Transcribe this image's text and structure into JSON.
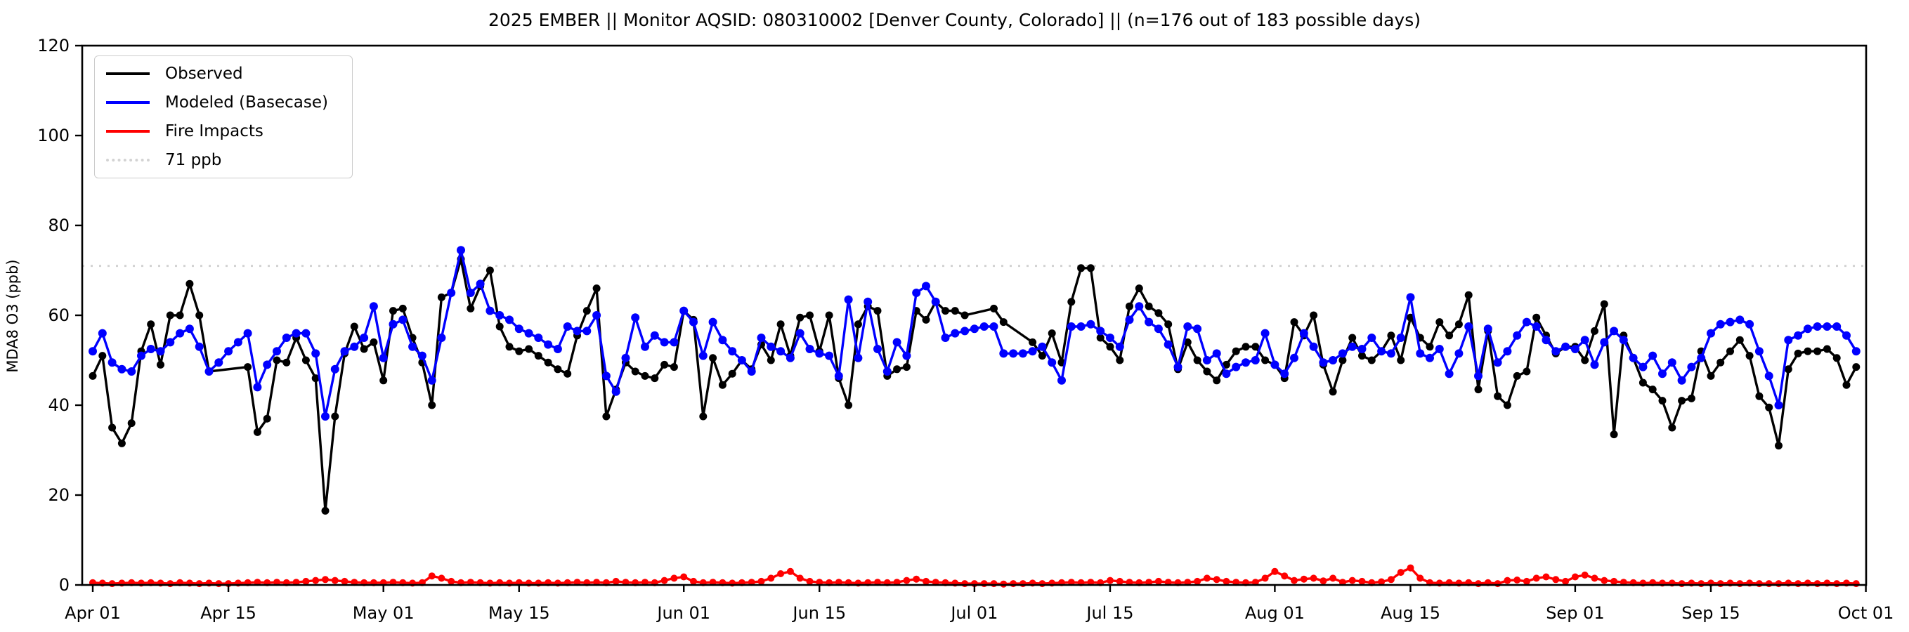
{
  "title": "2025 EMBER || Monitor AQSID: 080310002 [Denver County, Colorado] || (n=176 out of 183 possible days)",
  "chart_data": {
    "type": "line",
    "title": "2025 EMBER || Monitor AQSID: 080310002 [Denver County, Colorado] || (n=176 out of 183 possible days)",
    "xlabel": "",
    "ylabel": "MDA8 O3 (ppb)",
    "ylim": [
      0,
      120
    ],
    "yticks": [
      0,
      20,
      40,
      60,
      80,
      100,
      120
    ],
    "x_start_date": "Apr 01",
    "x_end_date": "Oct 01",
    "n_days": 183,
    "xtick_labels": [
      "Apr 01",
      "Apr 15",
      "May 01",
      "May 15",
      "Jun 01",
      "Jun 15",
      "Jul 01",
      "Jul 15",
      "Aug 01",
      "Aug 15",
      "Sep 01",
      "Sep 15",
      "Oct 01"
    ],
    "xtick_days": [
      0,
      14,
      30,
      44,
      61,
      75,
      91,
      105,
      122,
      136,
      153,
      167,
      183
    ],
    "grid": false,
    "legend_position": "upper left",
    "reference_line": {
      "value": 71,
      "label": "71 ppb",
      "color": "#d3d3d3",
      "style": "dotted"
    },
    "series": [
      {
        "name": "Observed",
        "color": "#000000",
        "values": [
          46.5,
          51,
          35,
          31.5,
          36,
          52,
          58,
          49,
          60,
          60,
          67,
          60,
          47.5,
          null,
          null,
          null,
          48.5,
          34,
          37,
          50,
          49.5,
          55,
          50,
          46,
          16.5,
          37.5,
          51.5,
          57.5,
          52.5,
          54,
          45.5,
          61,
          61.5,
          55,
          49.5,
          40,
          64,
          65,
          72.5,
          61.5,
          66.5,
          70,
          57.5,
          53,
          52,
          52.5,
          51,
          49.5,
          48,
          47,
          55.5,
          61,
          66,
          37.5,
          43.5,
          49.5,
          47.5,
          46.5,
          46,
          49,
          48.5,
          61,
          59,
          37.5,
          50.5,
          44.5,
          47,
          50,
          48,
          53.5,
          50,
          58,
          51,
          59.5,
          60,
          52,
          60,
          46,
          40,
          58,
          62,
          61,
          46.5,
          48,
          48.5,
          61,
          59,
          63,
          61,
          61,
          60,
          null,
          null,
          61.5,
          58.5,
          null,
          null,
          54,
          51,
          56,
          49.5,
          63,
          70.5,
          70.5,
          55,
          53,
          50,
          62,
          66,
          62,
          60.5,
          58,
          48,
          54,
          50,
          47.5,
          45.5,
          49,
          52,
          53,
          53,
          50,
          49,
          46,
          58.5,
          55.5,
          60,
          49,
          43,
          50,
          55,
          51,
          50,
          52,
          55.5,
          50,
          59.5,
          55,
          53,
          58.5,
          55.5,
          58,
          64.5,
          43.5,
          56.5,
          42,
          40,
          46.5,
          47.5,
          59.5,
          55.5,
          51.5,
          53,
          53,
          50,
          56.5,
          62.5,
          33.5,
          55.5,
          50.5,
          45,
          43.5,
          41,
          35,
          41,
          41.5,
          52,
          46.5,
          49.5,
          52,
          54.5,
          51,
          42,
          39.5,
          31,
          48,
          51.5,
          52,
          52,
          52.5,
          50.5,
          44.5,
          48.5
        ]
      },
      {
        "name": "Modeled (Basecase)",
        "color": "#0000ff",
        "values": [
          52,
          56,
          49.5,
          48,
          47.5,
          51,
          52.5,
          52,
          54,
          56,
          57,
          53,
          47.5,
          49.5,
          52,
          54,
          56,
          44,
          49,
          52,
          55,
          56,
          56,
          51.5,
          37.5,
          48,
          52,
          53,
          55,
          62,
          50.5,
          58,
          59,
          53,
          51,
          45.5,
          55,
          65,
          74.5,
          65,
          67,
          61,
          60,
          59,
          57,
          56,
          55,
          53.5,
          52.5,
          57.5,
          56.5,
          56.5,
          60,
          46.5,
          43,
          50.5,
          59.5,
          53,
          55.5,
          54,
          54,
          61,
          58.5,
          51,
          58.5,
          54.5,
          52,
          50,
          47.5,
          55,
          53,
          52,
          50.5,
          56,
          52.5,
          51.5,
          51,
          46.5,
          63.5,
          50.5,
          63,
          52.5,
          47.5,
          54,
          51,
          65,
          66.5,
          63,
          55,
          56,
          56.5,
          57,
          57.5,
          57.5,
          51.5,
          51.5,
          51.5,
          52,
          53,
          49.5,
          45.5,
          57.5,
          57.5,
          58,
          56.5,
          55,
          53,
          59,
          62,
          58.5,
          57,
          53.5,
          48.5,
          57.5,
          57,
          50,
          51.5,
          47,
          48.5,
          49.5,
          50,
          56,
          49,
          47,
          50.5,
          56,
          53,
          49.5,
          50,
          51.5,
          53,
          52.5,
          55,
          52,
          51.5,
          55,
          64,
          51.5,
          50.5,
          52.5,
          47,
          51.5,
          57.5,
          46.5,
          57,
          49.5,
          52,
          55.5,
          58.5,
          57.5,
          54.5,
          52,
          53,
          52.5,
          54.5,
          49,
          54,
          56.5,
          54.5,
          50.5,
          48.5,
          51,
          47,
          49.5,
          45.5,
          48.5,
          50.5,
          56,
          58,
          58.5,
          59,
          58,
          52,
          46.5,
          40,
          54.5,
          55.5,
          57,
          57.5,
          57.5,
          57.5,
          55.5,
          52
        ]
      },
      {
        "name": "Fire Impacts",
        "color": "#ff0000",
        "values": [
          0.5,
          0.4,
          0.3,
          0.4,
          0.5,
          0.4,
          0.5,
          0.4,
          0.3,
          0.5,
          0.4,
          0.3,
          0.4,
          0.3,
          0.3,
          0.4,
          0.5,
          0.6,
          0.5,
          0.6,
          0.5,
          0.6,
          0.8,
          1.0,
          1.2,
          1.0,
          0.8,
          0.6,
          0.5,
          0.5,
          0.5,
          0.6,
          0.5,
          0.4,
          0.5,
          2.0,
          1.5,
          0.8,
          0.5,
          0.6,
          0.5,
          0.4,
          0.5,
          0.4,
          0.5,
          0.4,
          0.4,
          0.5,
          0.4,
          0.5,
          0.6,
          0.5,
          0.6,
          0.5,
          0.8,
          0.6,
          0.5,
          0.6,
          0.5,
          1.0,
          1.5,
          1.8,
          0.8,
          0.5,
          0.6,
          0.5,
          0.4,
          0.5,
          0.6,
          0.8,
          1.5,
          2.5,
          3.0,
          1.5,
          0.8,
          0.6,
          0.5,
          0.6,
          0.5,
          0.4,
          0.5,
          0.6,
          0.5,
          0.6,
          1.0,
          1.3,
          0.8,
          0.6,
          0.5,
          0.4,
          0.3,
          0.3,
          0.3,
          0.3,
          0.2,
          0.3,
          0.3,
          0.4,
          0.3,
          0.4,
          0.5,
          0.6,
          0.5,
          0.6,
          0.5,
          1.0,
          0.8,
          0.6,
          0.5,
          0.6,
          0.8,
          0.6,
          0.5,
          0.6,
          0.8,
          1.5,
          1.2,
          0.8,
          0.6,
          0.5,
          0.6,
          1.5,
          3.0,
          2.0,
          1.0,
          1.3,
          1.5,
          0.9,
          1.5,
          0.6,
          1.0,
          0.8,
          0.5,
          0.7,
          1.2,
          2.8,
          3.8,
          1.5,
          0.5,
          0.4,
          0.5,
          0.4,
          0.5,
          0.3,
          0.5,
          0.3,
          1.0,
          1.1,
          0.8,
          1.5,
          1.8,
          1.2,
          0.8,
          1.8,
          2.2,
          1.5,
          1.0,
          0.8,
          0.6,
          0.5,
          0.4,
          0.5,
          0.4,
          0.4,
          0.3,
          0.4,
          0.3,
          0.4,
          0.3,
          0.4,
          0.3,
          0.4,
          0.3,
          0.3,
          0.3,
          0.4,
          0.3,
          0.4,
          0.3,
          0.4,
          0.3,
          0.4,
          0.3
        ]
      }
    ]
  }
}
